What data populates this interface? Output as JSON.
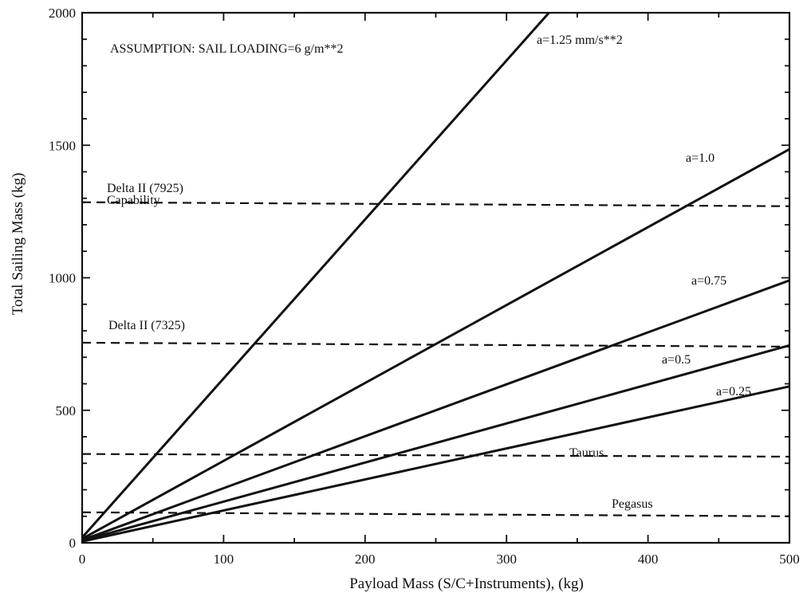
{
  "chart_data": {
    "type": "line",
    "title": "",
    "xlabel": "Payload Mass (S/C+Instruments), (kg)",
    "ylabel": "Total Sailing Mass (kg)",
    "xlim": [
      0,
      500
    ],
    "ylim": [
      0,
      2000
    ],
    "x_ticks": [
      0,
      100,
      200,
      300,
      400,
      500
    ],
    "y_ticks": [
      0,
      500,
      1000,
      1500,
      2000
    ],
    "x_tick_labels": [
      "0",
      "100",
      "200",
      "300",
      "400",
      "500"
    ],
    "y_tick_labels": [
      "0",
      "500",
      "1000",
      "1500",
      "2000"
    ],
    "grid": false,
    "assumption_text": "ASSUMPTION: SAIL LOADING=6 g/m**2",
    "series": [
      {
        "name": "a=1.25 mm/s**2",
        "style": "solid",
        "x": [
          0,
          330
        ],
        "y": [
          20,
          2000
        ]
      },
      {
        "name": "a=1.0",
        "style": "solid",
        "x": [
          0,
          500
        ],
        "y": [
          15,
          1485
        ]
      },
      {
        "name": "a=0.75",
        "style": "solid",
        "x": [
          0,
          500
        ],
        "y": [
          10,
          990
        ]
      },
      {
        "name": "a=0.5",
        "style": "solid",
        "x": [
          0,
          500
        ],
        "y": [
          8,
          745
        ]
      },
      {
        "name": "a=0.25",
        "style": "solid",
        "x": [
          0,
          500
        ],
        "y": [
          5,
          590
        ]
      }
    ],
    "reference_lines": [
      {
        "label_lines": [
          "Delta II (7925)",
          "Capability"
        ],
        "style": "dashed",
        "x": [
          0,
          500
        ],
        "y": [
          1285,
          1270
        ]
      },
      {
        "label_lines": [
          "Delta II (7325)"
        ],
        "style": "dashed",
        "x": [
          0,
          500
        ],
        "y": [
          755,
          740
        ]
      },
      {
        "label_lines": [
          "Taurus"
        ],
        "style": "dashed",
        "x": [
          0,
          500
        ],
        "y": [
          335,
          325
        ]
      },
      {
        "label_lines": [
          "Pegasus"
        ],
        "style": "dashed",
        "x": [
          0,
          500
        ],
        "y": [
          115,
          100
        ]
      }
    ],
    "colors": {
      "line": "#111111",
      "background": "#ffffff"
    }
  }
}
